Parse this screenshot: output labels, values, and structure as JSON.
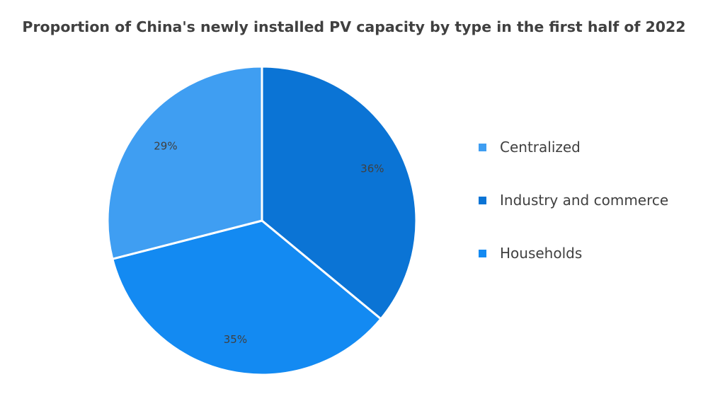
{
  "chart_data": {
    "type": "pie",
    "title": "Proportion of China's newly installed PV capacity by type in the first half of 2022",
    "slices": [
      {
        "label": "Industry and commerce",
        "value": 36,
        "display": "36%",
        "color": "#0b74d5"
      },
      {
        "label": "Households",
        "value": 35,
        "display": "35%",
        "color": "#138af2"
      },
      {
        "label": "Centralized",
        "value": 29,
        "display": "29%",
        "color": "#3f9ef2"
      }
    ],
    "legend": {
      "placement": "right",
      "order": [
        "Centralized",
        "Industry and commerce",
        "Households"
      ]
    },
    "data_labels": true
  }
}
